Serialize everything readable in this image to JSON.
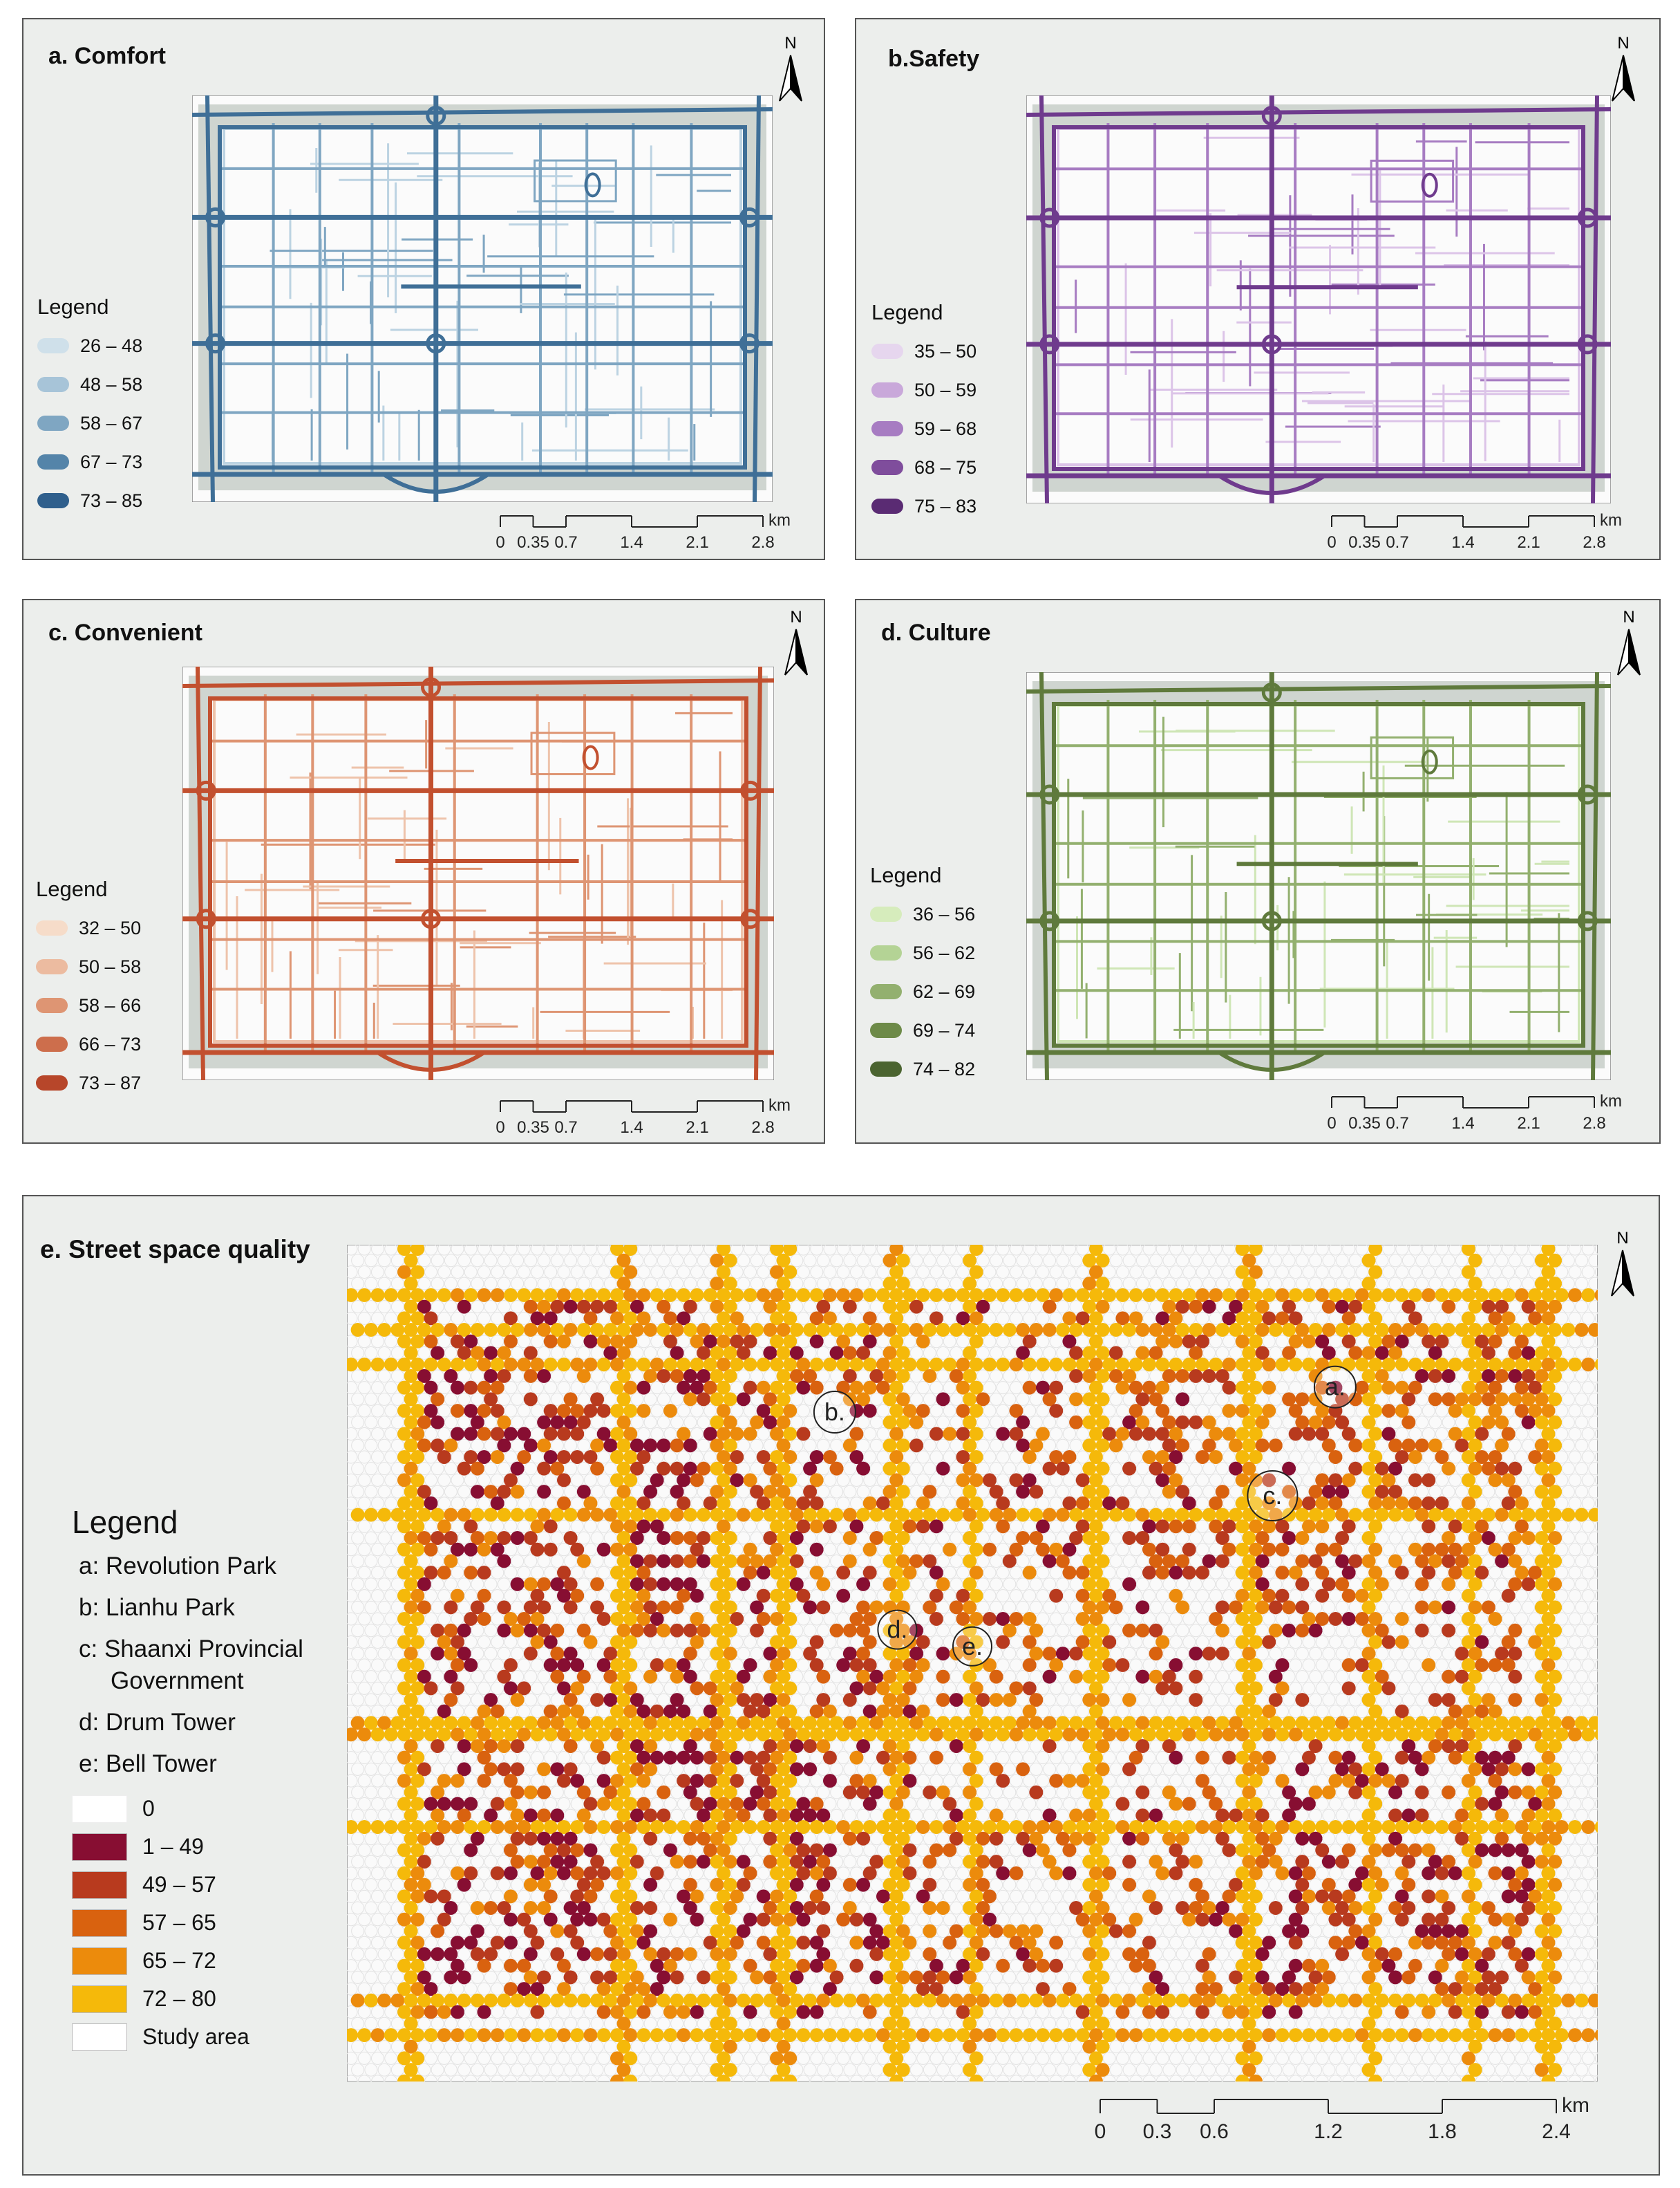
{
  "panels": [
    {
      "id": "a",
      "title": "a. Comfort",
      "legend_title": "Legend",
      "classes": [
        {
          "label": "26 – 48",
          "color": "#cfe0ea"
        },
        {
          "label": "48 – 58",
          "color": "#a7c4d8"
        },
        {
          "label": "58 – 67",
          "color": "#7fa6c2"
        },
        {
          "label": "67 – 73",
          "color": "#5484a9"
        },
        {
          "label": "73 – 85",
          "color": "#2f5f8c"
        }
      ],
      "main_color": "#3f6f97",
      "light_color": "#bcd3e2"
    },
    {
      "id": "b",
      "title": "b.Safety",
      "legend_title": "Legend",
      "classes": [
        {
          "label": "35 – 50",
          "color": "#e6d6ee"
        },
        {
          "label": "50 – 59",
          "color": "#c9a8da"
        },
        {
          "label": "59 – 68",
          "color": "#a77cc2"
        },
        {
          "label": "68 – 75",
          "color": "#7f4d9c"
        },
        {
          "label": "75 – 83",
          "color": "#5a2b73"
        }
      ],
      "main_color": "#6f3b8d",
      "light_color": "#dcc4e8"
    },
    {
      "id": "c",
      "title": "c. Convenient",
      "legend_title": "Legend",
      "classes": [
        {
          "label": "32 – 50",
          "color": "#f6dcc9"
        },
        {
          "label": "50 – 58",
          "color": "#ecbba0"
        },
        {
          "label": "58 – 66",
          "color": "#de9573"
        },
        {
          "label": "66 – 73",
          "color": "#cd6e4c"
        },
        {
          "label": "73 – 87",
          "color": "#b7462a"
        }
      ],
      "main_color": "#c2502f",
      "light_color": "#eec3ab"
    },
    {
      "id": "d",
      "title": "d. Culture",
      "legend_title": "Legend",
      "classes": [
        {
          "label": "36 – 56",
          "color": "#d6ecbc"
        },
        {
          "label": "56 – 62",
          "color": "#b4d395"
        },
        {
          "label": "62 – 69",
          "color": "#93b06f"
        },
        {
          "label": "69 – 74",
          "color": "#6d8a48"
        },
        {
          "label": "74 – 82",
          "color": "#4b6430"
        }
      ],
      "main_color": "#5f7a3c",
      "light_color": "#cfe6b6"
    }
  ],
  "small_scale": {
    "ticks": [
      "0",
      "0.35",
      "0.7",
      "1.4",
      "2.1",
      "2.8"
    ],
    "unit": "km"
  },
  "north_label": "N",
  "panel_e": {
    "title": "e. Street space quality",
    "legend_title": "Legend",
    "places": [
      {
        "key": "a",
        "text": "a: Revolution Park"
      },
      {
        "key": "b",
        "text": "b: Lianhu Park"
      },
      {
        "key": "c",
        "text": "c: Shaanxi Provincial",
        "text2": "Government"
      },
      {
        "key": "d",
        "text": "d: Drum Tower"
      },
      {
        "key": "e",
        "text": "e: Bell Tower"
      }
    ],
    "classes": [
      {
        "label": "0",
        "color": "#ffffff"
      },
      {
        "label": "1 – 49",
        "color": "#870e32"
      },
      {
        "label": "49 – 57",
        "color": "#b83a1e"
      },
      {
        "label": "57 – 65",
        "color": "#d9620f"
      },
      {
        "label": "65 – 72",
        "color": "#ec8b0c"
      },
      {
        "label": "72 – 80",
        "color": "#f5b90a"
      },
      {
        "label": "Study area",
        "color": "#ffffff"
      }
    ],
    "markers": [
      "a.",
      "b.",
      "c.",
      "d.",
      "e."
    ],
    "scale": {
      "ticks": [
        "0",
        "0.3",
        "0.6",
        "1.2",
        "1.8",
        "2.4"
      ],
      "unit": "km"
    }
  }
}
